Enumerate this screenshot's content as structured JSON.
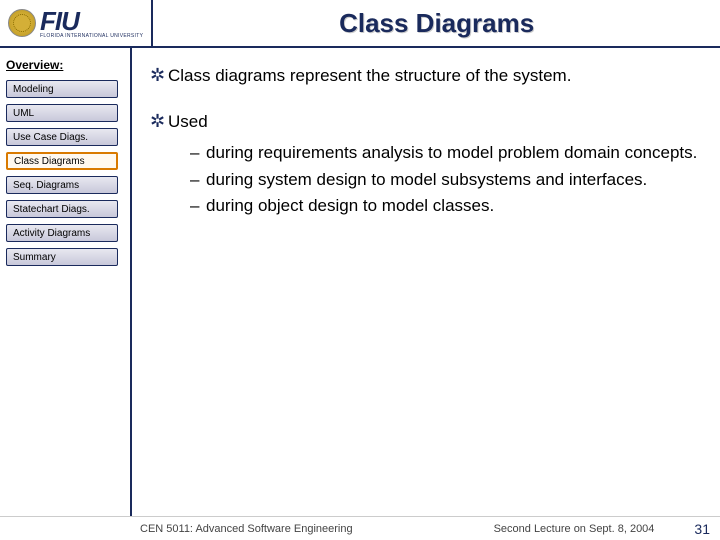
{
  "header": {
    "logo_text": "FIU",
    "logo_sub": "FLORIDA INTERNATIONAL UNIVERSITY",
    "title": "Class Diagrams"
  },
  "sidebar": {
    "heading": "Overview:",
    "items": [
      {
        "label": "Modeling",
        "active": false
      },
      {
        "label": "UML",
        "active": false
      },
      {
        "label": "Use Case Diags.",
        "active": false
      },
      {
        "label": "Class Diagrams",
        "active": true
      },
      {
        "label": "Seq. Diagrams",
        "active": false
      },
      {
        "label": "Statechart Diags.",
        "active": false
      },
      {
        "label": "Activity Diagrams",
        "active": false
      },
      {
        "label": "Summary",
        "active": false
      }
    ]
  },
  "content": {
    "bullets": [
      {
        "text": "Class diagrams represent the structure of the system.",
        "subs": []
      },
      {
        "text": "Used",
        "subs": [
          "during requirements analysis to model problem domain concepts.",
          "during system design to model subsystems and interfaces.",
          "during object design to model classes."
        ]
      }
    ]
  },
  "footer": {
    "left": "CEN 5011: Advanced Software Engineering",
    "mid": "Second Lecture on Sept. 8, 2004",
    "page": "31"
  },
  "colors": {
    "brand": "#1a2a5c",
    "accent": "#d97a00"
  }
}
